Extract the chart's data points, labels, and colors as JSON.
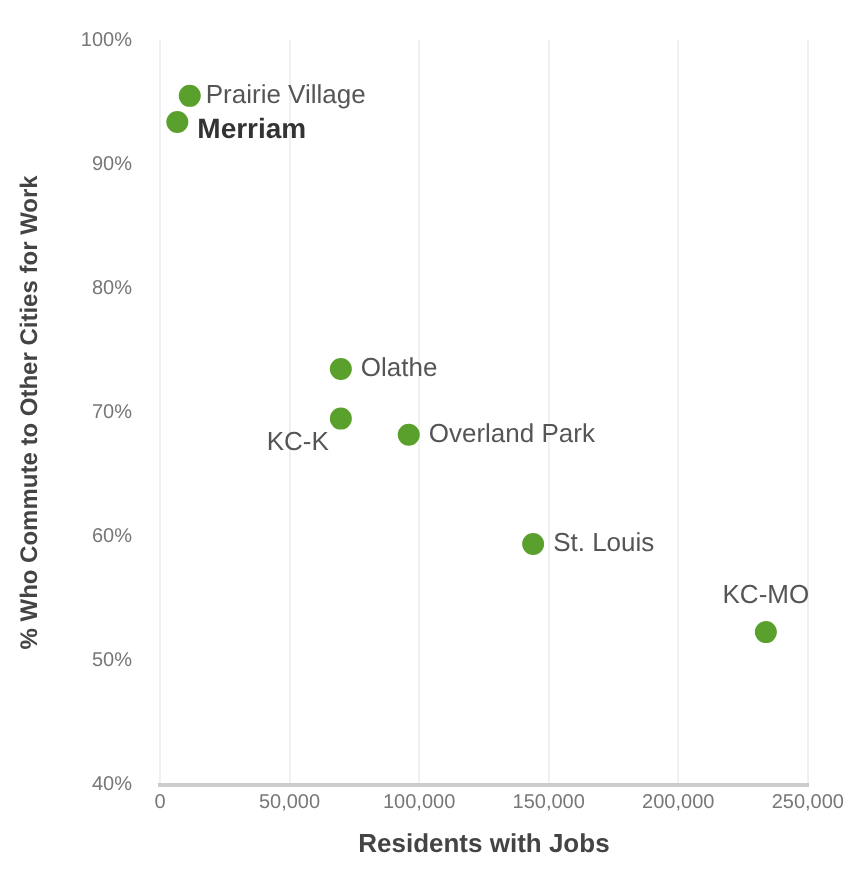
{
  "chart_data": {
    "type": "scatter",
    "xlabel": "Residents with Jobs",
    "ylabel": "% Who Commute to Other Cities for Work",
    "series": [
      {
        "color": "#5aa02c",
        "x": [
          11500,
          6700,
          69800,
          69800,
          96000,
          144000,
          233800
        ],
        "values": [
          95.5,
          93.4,
          73.5,
          69.5,
          68.2,
          59.4,
          52.3
        ]
      }
    ],
    "annotations": [
      {
        "text": "Prairie Village",
        "x": 11500,
        "y": 95.5
      },
      {
        "text": "Merriam",
        "x": 6700,
        "y": 93.4
      },
      {
        "text": "Olathe",
        "x": 69800,
        "y": 73.5
      },
      {
        "text": "KC-K",
        "x": 69800,
        "y": 69.5
      },
      {
        "text": "Overland Park",
        "x": 96000,
        "y": 68.2
      },
      {
        "text": "St. Louis",
        "x": 144000,
        "y": 59.4
      },
      {
        "text": "KC-MO",
        "x": 233800,
        "y": 52.3
      }
    ],
    "xlim": [
      0,
      250000
    ],
    "ylim": [
      40,
      100
    ],
    "xticks": [
      0,
      {
        "value": 50000,
        "label": "50,000"
      },
      {
        "value": 100000,
        "label": "100,000"
      },
      {
        "value": 150000,
        "label": "150,000"
      },
      {
        "value": 200000,
        "label": "200,000"
      },
      {
        "value": 250000,
        "label": "250,000"
      }
    ],
    "yticks": [
      {
        "value": 40,
        "label": "40%"
      },
      {
        "value": 50,
        "label": "50%"
      },
      {
        "value": 60,
        "label": "60%"
      },
      {
        "value": 70,
        "label": "70%"
      },
      {
        "value": 80,
        "label": "80%"
      },
      {
        "value": 90,
        "label": "90%"
      },
      {
        "value": 100,
        "label": "100%"
      }
    ],
    "grid": "x",
    "legend": false,
    "marker": "circle"
  }
}
